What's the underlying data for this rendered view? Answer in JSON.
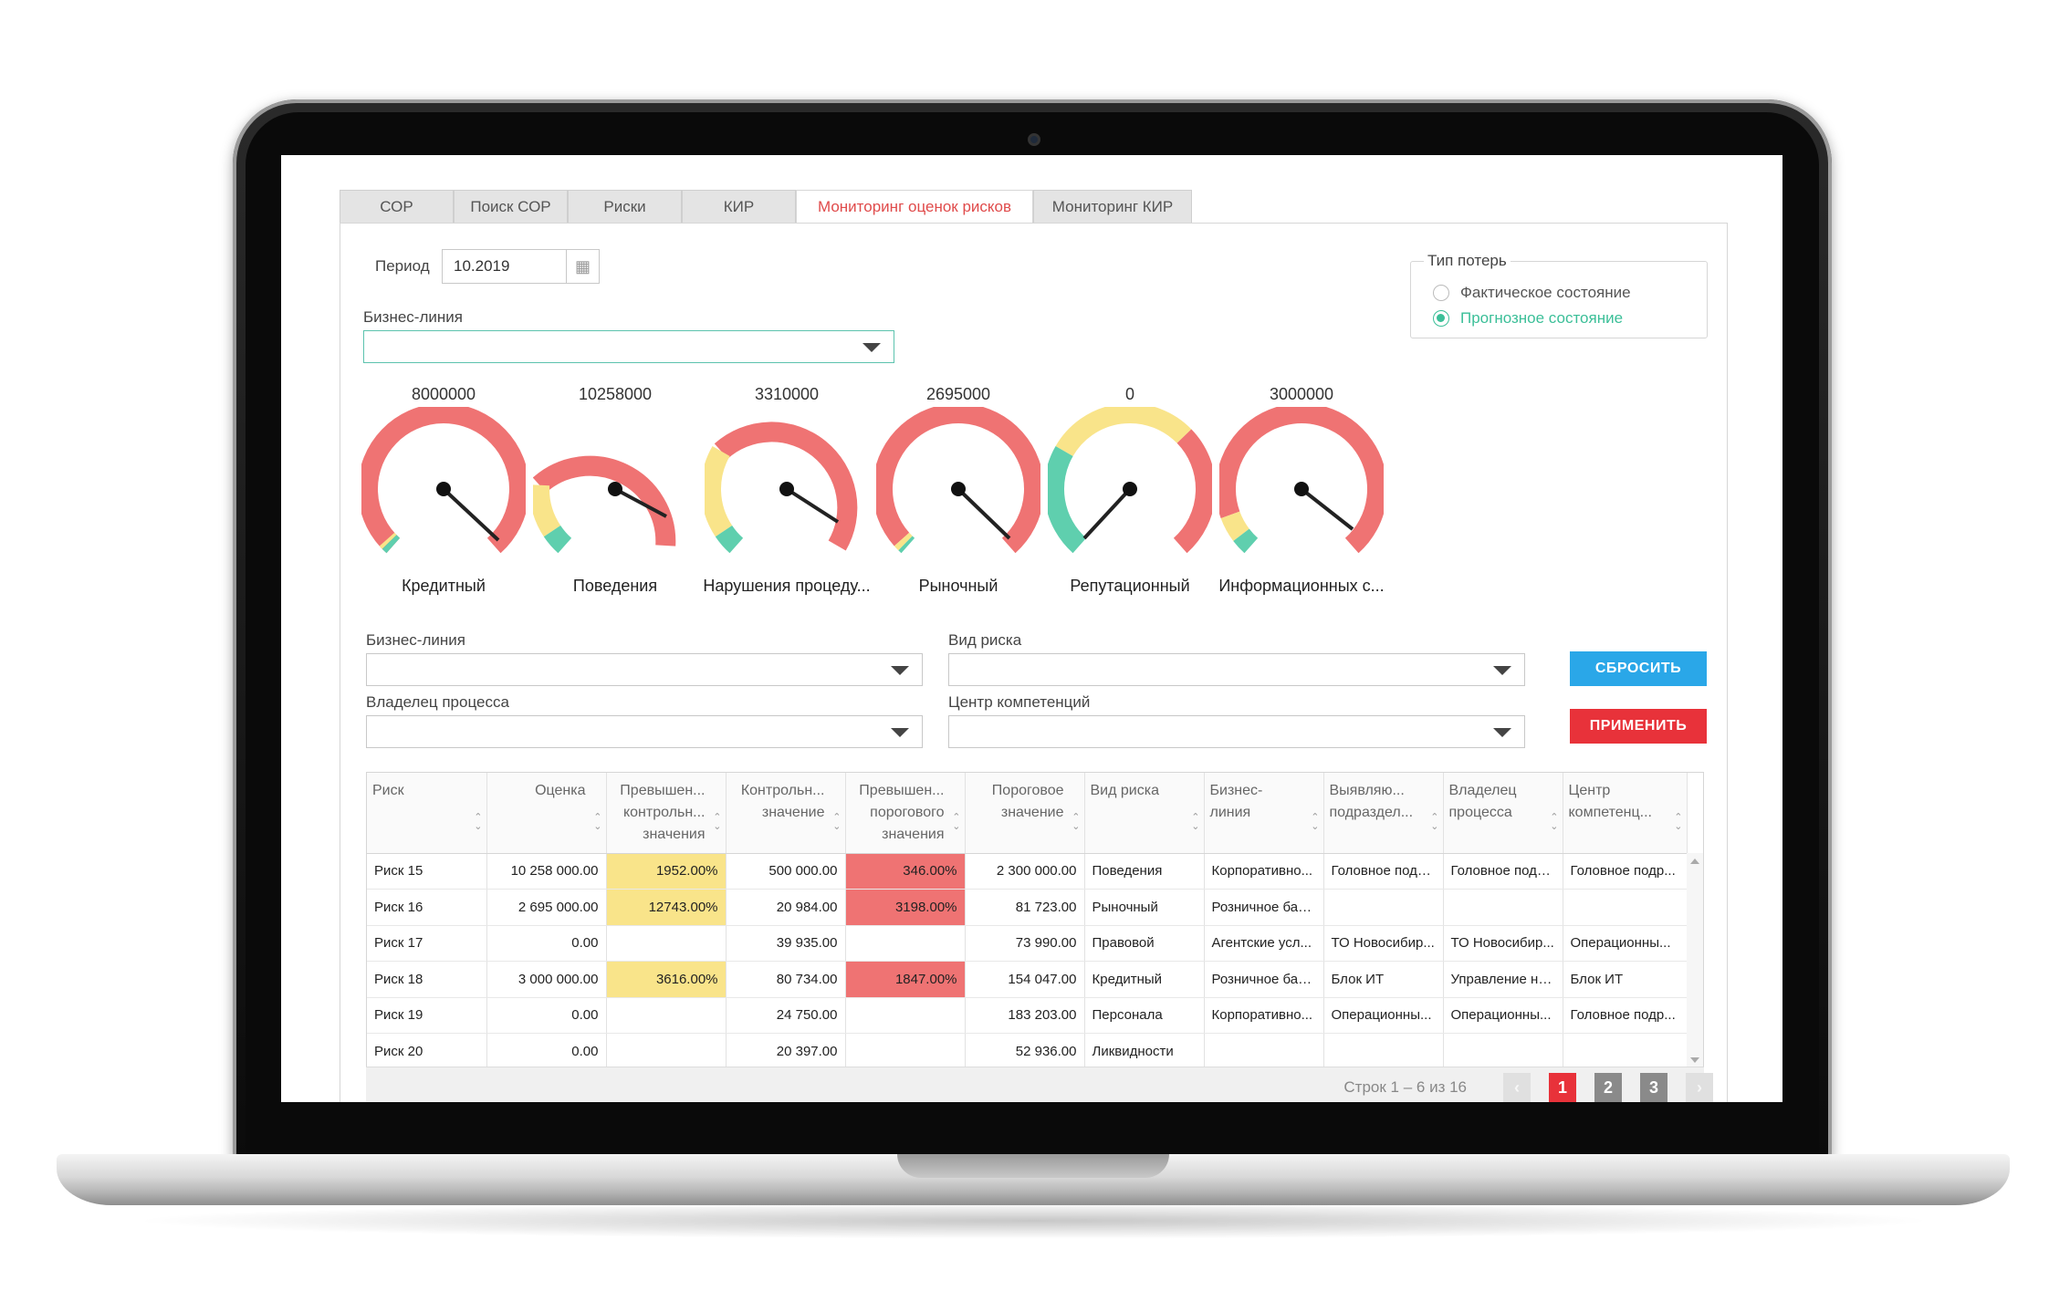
{
  "tabs": [
    "СОР",
    "Поиск СОР",
    "Риски",
    "КИР",
    "Мониторинг оценок рисков",
    "Мониторинг КИР"
  ],
  "period": {
    "label": "Период",
    "value": "10.2019"
  },
  "business_line_top": {
    "label": "Бизнес-линия",
    "value": ""
  },
  "loss_type": {
    "legend": "Тип потерь",
    "options": [
      {
        "label": "Фактическое состояние",
        "selected": false
      },
      {
        "label": "Прогнозное состояние",
        "selected": true
      }
    ]
  },
  "gauges": [
    {
      "value": "8000000",
      "name": "Кредитный"
    },
    {
      "value": "10258000",
      "name": "Поведения"
    },
    {
      "value": "3310000",
      "name": "Нарушения процеду..."
    },
    {
      "value": "2695000",
      "name": "Рыночный"
    },
    {
      "value": "0",
      "name": "Репутационный"
    },
    {
      "value": "3000000",
      "name": "Информационных с..."
    }
  ],
  "filters": {
    "business_line": "Бизнес-линия",
    "risk_type": "Вид риска",
    "process_owner": "Владелец процесса",
    "competence_center": "Центр компетенций"
  },
  "buttons": {
    "reset": "СБРОСИТЬ",
    "apply": "ПРИМЕНИТЬ"
  },
  "table": {
    "columns": [
      {
        "label": "Риск",
        "align": "left"
      },
      {
        "label": "Оценка",
        "align": "right"
      },
      {
        "label": "Превышен... контрольн... значения",
        "align": "right"
      },
      {
        "label": "Контрольн... значение",
        "align": "right"
      },
      {
        "label": "Превышен... порогового значения",
        "align": "right"
      },
      {
        "label": "Пороговое значение",
        "align": "right"
      },
      {
        "label": "Вид риска",
        "align": "left"
      },
      {
        "label": "Бизнес-линия",
        "align": "left"
      },
      {
        "label": "Выявляю... подраздел...",
        "align": "left"
      },
      {
        "label": "Владелец процесса",
        "align": "left"
      },
      {
        "label": "Центр компетенц...",
        "align": "left"
      }
    ],
    "rows": [
      [
        "Риск 15",
        "10 258 000.00",
        "1952.00%",
        "500 000.00",
        "346.00%",
        "2 300 000.00",
        "Поведения",
        "Корпоративно...",
        "Головное подр...",
        "Головное подр...",
        "Головное подр..."
      ],
      [
        "Риск 16",
        "2 695 000.00",
        "12743.00%",
        "20 984.00",
        "3198.00%",
        "81 723.00",
        "Рыночный",
        "Розничное бан...",
        "",
        "",
        ""
      ],
      [
        "Риск 17",
        "0.00",
        "",
        "39 935.00",
        "",
        "73 990.00",
        "Правовой",
        "Агентские усл...",
        "ТО Новосибир...",
        "ТО Новосибир...",
        "Операционны..."
      ],
      [
        "Риск 18",
        "3 000 000.00",
        "3616.00%",
        "80 734.00",
        "1847.00%",
        "154 047.00",
        "Кредитный",
        "Розничное бан...",
        "Блок ИТ",
        "Управление не...",
        "Блок ИТ"
      ],
      [
        "Риск 19",
        "0.00",
        "",
        "24 750.00",
        "",
        "183 203.00",
        "Персонала",
        "Корпоративно...",
        "Операционны...",
        "Операционны...",
        "Головное подр..."
      ],
      [
        "Риск 20",
        "0.00",
        "",
        "20 397.00",
        "",
        "52 936.00",
        "Ликвидности",
        "",
        "",
        "",
        ""
      ]
    ]
  },
  "pagination": {
    "info": "Строк 1 – 6 из 16",
    "prev": "‹",
    "pages": [
      "1",
      "2",
      "3"
    ],
    "current": "1",
    "next": "›"
  },
  "colors": {
    "red": "#ef7373",
    "yellow": "#f9e48a",
    "green": "#5fcfae",
    "accent": "#e04b4b",
    "button_reset": "#2aa7e8",
    "button_apply": "#e8323a"
  }
}
